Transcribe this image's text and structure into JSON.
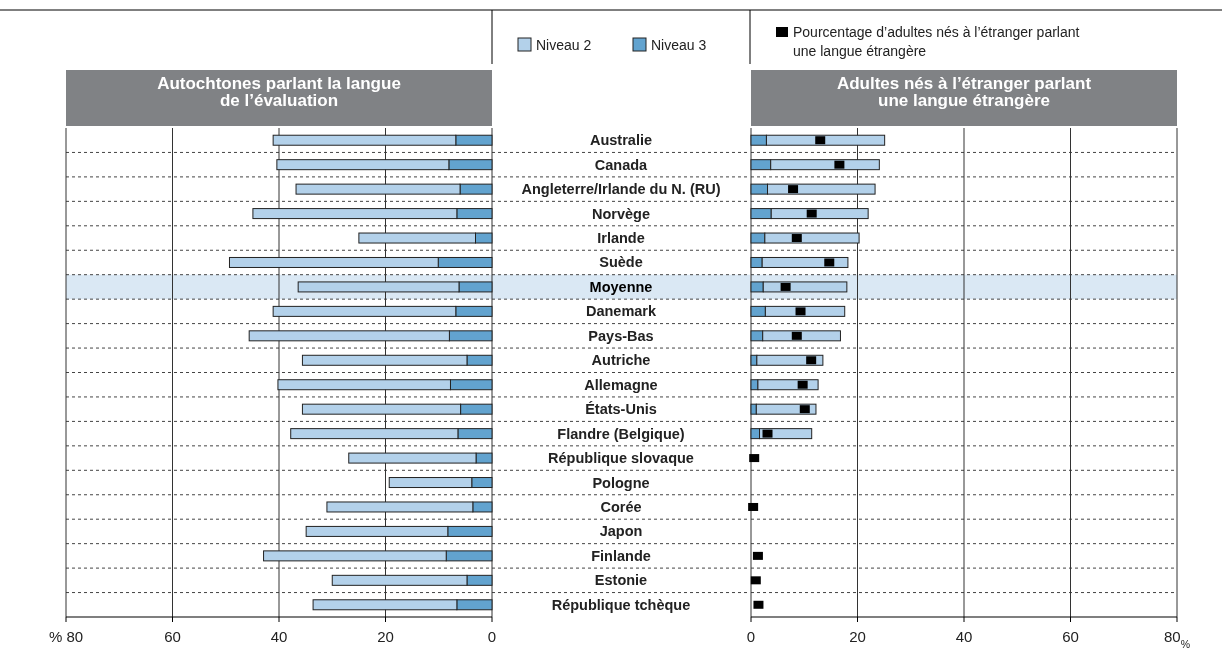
{
  "chart_data": [
    {
      "type": "bar",
      "orientation": "horizontal",
      "stacked": true,
      "title": "Autochtones parlant la langue de l’évaluation",
      "categories": [
        "Australie",
        "Canada",
        "Angleterre/Irlande du N. (RU)",
        "Norvège",
        "Irlande",
        "Suède",
        "Moyenne",
        "Danemark",
        "Pays-Bas",
        "Autriche",
        "Allemagne",
        "États-Unis",
        "Flandre (Belgique)",
        "République slovaque",
        "Pologne",
        "Corée",
        "Japon",
        "Finlande",
        "Estonie",
        "République tchèque"
      ],
      "series": [
        {
          "name": "Niveau 3",
          "color": "#62a3cf",
          "values": [
            6.8,
            8.1,
            6.0,
            6.6,
            3.1,
            10.1,
            6.2,
            6.8,
            8.0,
            4.7,
            7.8,
            5.9,
            6.4,
            3.0,
            3.8,
            3.6,
            8.3,
            8.6,
            4.7,
            6.6
          ]
        },
        {
          "name": "Niveau 2",
          "color": "#b3d1ea",
          "values": [
            34.3,
            32.3,
            30.8,
            38.3,
            21.9,
            39.2,
            30.2,
            34.3,
            37.6,
            30.9,
            32.4,
            29.7,
            31.4,
            23.9,
            15.5,
            27.4,
            26.6,
            34.3,
            25.3,
            27.0
          ]
        }
      ],
      "xlim": [
        80,
        0
      ],
      "xticks": [
        {
          "value": 80,
          "label": "% 80"
        },
        60,
        40,
        20,
        0
      ],
      "grid": "x",
      "legend": "top",
      "bands": [
        {
          "axis": "y",
          "from": "Moyenne",
          "to": "Moyenne",
          "color": "#dae8f4"
        }
      ]
    },
    {
      "type": "bar",
      "orientation": "horizontal",
      "stacked": true,
      "title": "Adultes nés à l’étranger parlant une langue étrangère",
      "categories": [
        "Australie",
        "Canada",
        "Angleterre/Irlande du N. (RU)",
        "Norvège",
        "Irlande",
        "Suède",
        "Moyenne",
        "Danemark",
        "Pays-Bas",
        "Autriche",
        "Allemagne",
        "États-Unis",
        "Flandre (Belgique)",
        "République slovaque",
        "Pologne",
        "Corée",
        "Japon",
        "Finlande",
        "Estonie",
        "République tchèque"
      ],
      "series": [
        {
          "name": "Niveau 3",
          "color": "#62a3cf",
          "values": [
            2.9,
            3.7,
            3.1,
            3.8,
            2.6,
            2.1,
            2.3,
            2.7,
            2.2,
            1.1,
            1.3,
            1.0,
            1.6,
            null,
            null,
            null,
            null,
            null,
            null,
            null
          ]
        },
        {
          "name": "Niveau 2",
          "color": "#b3d1ea",
          "values": [
            22.2,
            20.4,
            20.2,
            18.2,
            17.7,
            16.1,
            15.7,
            14.9,
            14.6,
            12.4,
            11.3,
            11.2,
            9.8,
            null,
            null,
            null,
            null,
            null,
            null,
            null
          ]
        },
        {
          "name": "Pourcentage d’adultes nés à l’étranger parlant une langue étrangère",
          "type": "scatter",
          "marker": "square",
          "color": "#000000",
          "x": [
            "Australie",
            "Canada",
            "Angleterre/Irlande du N. (RU)",
            "Norvège",
            "Irlande",
            "Suède",
            "Moyenne",
            "Danemark",
            "Pays-Bas",
            "Autriche",
            "Allemagne",
            "États-Unis",
            "Flandre (Belgique)",
            "République slovaque",
            "Pologne",
            "Corée",
            "Japon",
            "Finlande",
            "Estonie",
            "République tchèque"
          ],
          "values": [
            13.0,
            16.6,
            7.9,
            11.4,
            8.6,
            14.7,
            6.5,
            9.3,
            8.6,
            11.3,
            9.7,
            10.1,
            3.1,
            0.6,
            null,
            0.4,
            null,
            1.3,
            0.9,
            1.4
          ]
        }
      ],
      "xlim": [
        0,
        80
      ],
      "xticks": [
        0,
        20,
        40,
        60,
        {
          "value": 80,
          "label": "80$_{%}$"
        }
      ],
      "grid": "x",
      "legend": "top",
      "tick_labels": "x",
      "bands": [
        {
          "axis": "y",
          "from": "Moyenne",
          "to": "Moyenne",
          "color": "#dae8f4"
        }
      ]
    }
  ]
}
